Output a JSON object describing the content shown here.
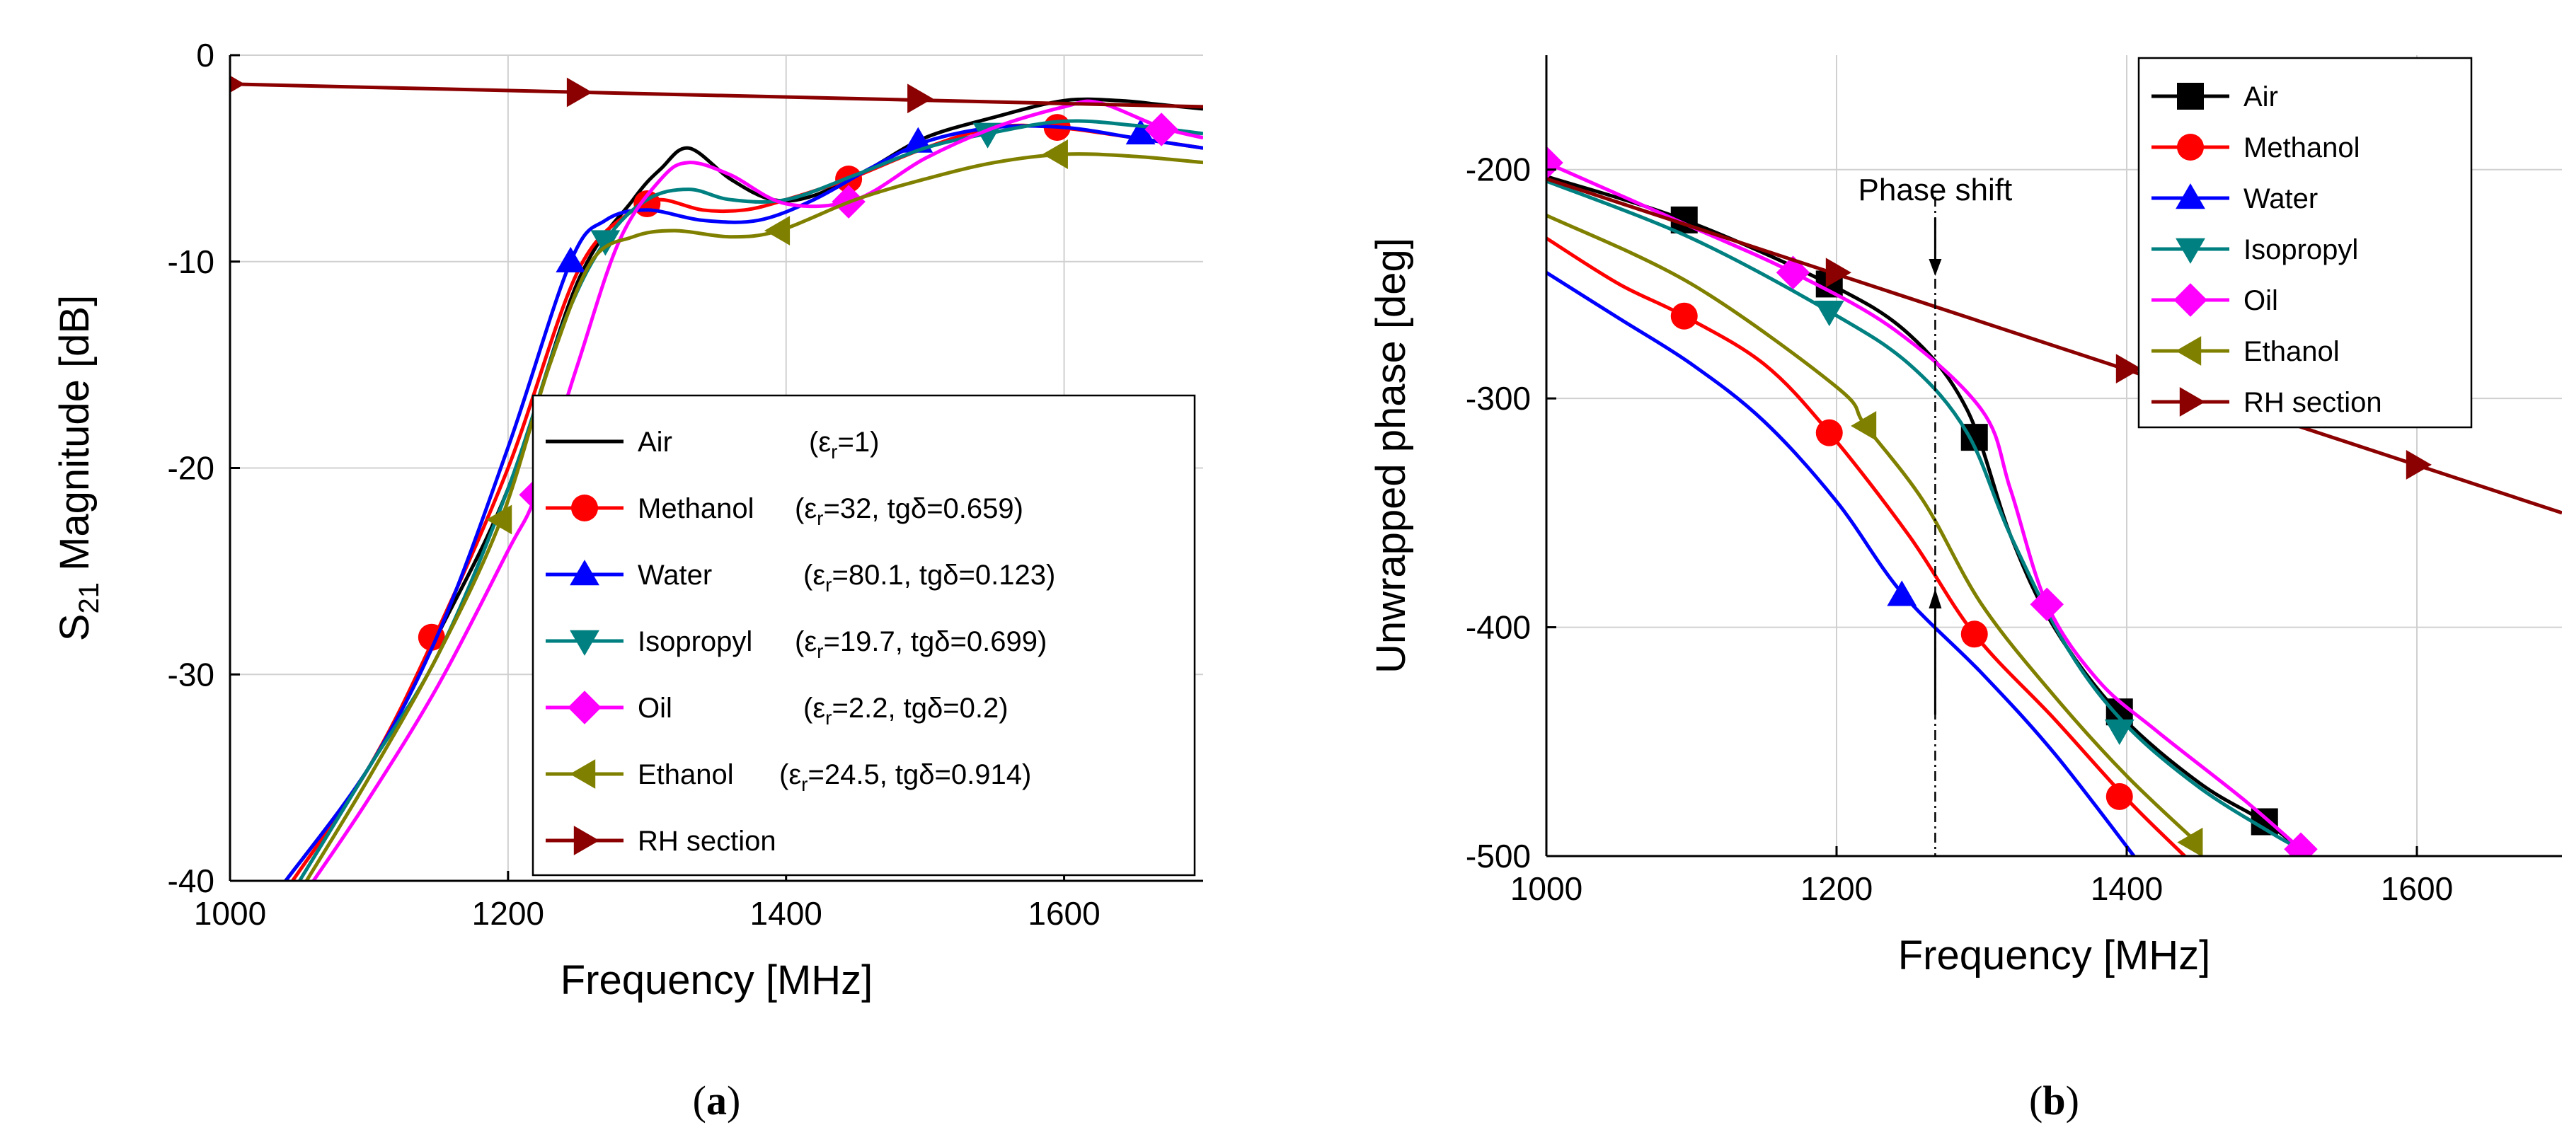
{
  "chart_data": [
    {
      "type": "line",
      "panel": "a",
      "caption_open": "(",
      "caption_letter": "a",
      "caption_close": ")",
      "ylabel_main": "S",
      "ylabel_sub": "21",
      "ylabel_rest": " Magnitude [dB]",
      "xlabel": "Frequency [MHz]",
      "xlim": [
        1000,
        1700
      ],
      "ylim": [
        -40,
        0
      ],
      "xticks": [
        1000,
        1200,
        1400,
        1600
      ],
      "xtick_labels": [
        "1000",
        "1200",
        "1400",
        "1600"
      ],
      "yticks": [
        0,
        -10,
        -20,
        -30,
        -40
      ],
      "ytick_labels": [
        "0",
        "-10",
        "-20",
        "-30",
        "-40"
      ],
      "grid": true,
      "legend_position": "lower-right",
      "series": [
        {
          "name": "Air",
          "legend_name": "Air",
          "legend_props": "(ε",
          "legend_sub": "r",
          "legend_props2": "=1)",
          "color": "#000000",
          "marker": "none",
          "x": [
            1040,
            1100,
            1150,
            1200,
            1250,
            1290,
            1310,
            1330,
            1360,
            1390,
            1420,
            1460,
            1500,
            1550,
            1600,
            1640,
            1670,
            1700
          ],
          "y": [
            -40,
            -34.5,
            -28,
            -21,
            -11,
            -7,
            -5.5,
            -4.5,
            -6,
            -7,
            -6.8,
            -5.5,
            -4,
            -3,
            -2.2,
            -2.2,
            -2.4,
            -2.6
          ]
        },
        {
          "name": "Methanol",
          "legend_name": "Methanol",
          "legend_props": "(ε",
          "legend_sub": "r",
          "legend_props2": "=32, tgδ=0.659)",
          "color": "#ff0000",
          "marker": "circle",
          "x": [
            1045,
            1100,
            1145,
            1200,
            1250,
            1290,
            1310,
            1340,
            1370,
            1400,
            1445,
            1500,
            1550,
            1595,
            1650,
            1700
          ],
          "y": [
            -40,
            -34.5,
            -28.5,
            -20,
            -10.5,
            -7.5,
            -7,
            -7.5,
            -7.5,
            -7,
            -6,
            -4.5,
            -3.5,
            -3.5,
            -4,
            -4.5
          ],
          "marker_x": [
            1145,
            1300,
            1445,
            1595
          ],
          "marker_y": [
            -28.2,
            -7.2,
            -6,
            -3.5
          ]
        },
        {
          "name": "Water",
          "legend_name": "Water",
          "legend_props": "(ε",
          "legend_sub": "r",
          "legend_props2": "=80.1, tgδ=0.123)",
          "color": "#0000ff",
          "marker": "triangle-up",
          "x": [
            1040,
            1100,
            1150,
            1200,
            1245,
            1270,
            1300,
            1340,
            1380,
            1420,
            1460,
            1500,
            1550,
            1600,
            1650,
            1700
          ],
          "y": [
            -40,
            -34.5,
            -28,
            -19,
            -10,
            -8,
            -7.5,
            -8,
            -8,
            -7,
            -5.5,
            -4.2,
            -3.5,
            -3.5,
            -4,
            -4.5
          ],
          "marker_x": [
            1245,
            1495,
            1655
          ],
          "marker_y": [
            -10,
            -4.2,
            -3.8
          ]
        },
        {
          "name": "Isopropyl",
          "legend_name": "Isopropyl",
          "legend_props": "(ε",
          "legend_sub": "r",
          "legend_props2": "=19.7, tgδ=0.699)",
          "color": "#008080",
          "marker": "triangle-down",
          "x": [
            1050,
            1100,
            1150,
            1200,
            1240,
            1270,
            1300,
            1330,
            1360,
            1400,
            1450,
            1500,
            1545,
            1600,
            1650,
            1700
          ],
          "y": [
            -40,
            -34.5,
            -29,
            -21,
            -13,
            -9,
            -7,
            -6.5,
            -7,
            -7,
            -5.8,
            -4.5,
            -3.8,
            -3.2,
            -3.4,
            -3.8
          ],
          "marker_x": [
            1270,
            1545
          ],
          "marker_y": [
            -9,
            -3.8
          ]
        },
        {
          "name": "Oil",
          "legend_name": "Oil",
          "legend_props": "(ε",
          "legend_sub": "r",
          "legend_props2": "=2.2, tgδ=0.2)",
          "color": "#ff00ff",
          "marker": "diamond",
          "x": [
            1060,
            1100,
            1150,
            1200,
            1220,
            1250,
            1280,
            1310,
            1330,
            1360,
            1400,
            1450,
            1500,
            1550,
            1600,
            1625,
            1670,
            1700
          ],
          "y": [
            -40,
            -36,
            -30.5,
            -24,
            -21.3,
            -15,
            -9,
            -6,
            -5.2,
            -5.8,
            -7.2,
            -7,
            -5,
            -3.5,
            -2.5,
            -2.3,
            -3.5,
            -4
          ],
          "marker_x": [
            1220,
            1445,
            1670
          ],
          "marker_y": [
            -21.3,
            -7.1,
            -3.6
          ]
        },
        {
          "name": "Ethanol",
          "legend_name": "Ethanol",
          "legend_props": "(ε",
          "legend_sub": "r",
          "legend_props2": "=24.5, tgδ=0.914)",
          "color": "#808000",
          "marker": "triangle-left",
          "x": [
            1055,
            1100,
            1150,
            1195,
            1230,
            1260,
            1290,
            1320,
            1360,
            1395,
            1450,
            1500,
            1550,
            1600,
            1650,
            1700
          ],
          "y": [
            -40,
            -35,
            -29,
            -22.5,
            -15,
            -10,
            -8.8,
            -8.5,
            -8.8,
            -8.5,
            -7,
            -6,
            -5.2,
            -4.8,
            -4.9,
            -5.2
          ],
          "marker_x": [
            1195,
            1395,
            1595
          ],
          "marker_y": [
            -22.5,
            -8.5,
            -4.8
          ]
        },
        {
          "name": "RH section",
          "legend_name": "RH section",
          "legend_props": "",
          "legend_sub": "",
          "legend_props2": "",
          "color": "#8b0000",
          "marker": "triangle-right",
          "x": [
            1000,
            1700
          ],
          "y": [
            -1.4,
            -2.5
          ],
          "marker_x": [
            1000,
            1250,
            1495
          ],
          "marker_y": [
            -1.4,
            -1.8,
            -2.1
          ]
        }
      ]
    },
    {
      "type": "line",
      "panel": "b",
      "caption_open": "(",
      "caption_letter": "b",
      "caption_close": ")",
      "ylabel": "Unwrapped phase [deg]",
      "xlabel": "Frequency [MHz]",
      "xlim": [
        1000,
        1700
      ],
      "ylim": [
        -500,
        -150
      ],
      "xticks": [
        1000,
        1200,
        1400,
        1600
      ],
      "xtick_labels": [
        "1000",
        "1200",
        "1400",
        "1600"
      ],
      "yticks": [
        -200,
        -300,
        -400,
        -500
      ],
      "ytick_labels": [
        "-200",
        "-300",
        "-400",
        "-500"
      ],
      "grid": true,
      "legend_position": "top-right",
      "annotation": {
        "text": "Phase shift",
        "x": 1268
      },
      "series": [
        {
          "name": "Air",
          "color": "#000000",
          "marker": "square",
          "x": [
            1000,
            1095,
            1195,
            1250,
            1290,
            1320,
            1350,
            1395,
            1450,
            1495,
            1520
          ],
          "y": [
            -203,
            -222,
            -250,
            -272,
            -305,
            -360,
            -400,
            -438,
            -468,
            -485,
            -497
          ],
          "marker_x": [
            1095,
            1195,
            1295,
            1395,
            1495
          ],
          "marker_y": [
            -222,
            -250,
            -317,
            -437,
            -485
          ]
        },
        {
          "name": "Methanol",
          "color": "#ff0000",
          "marker": "circle",
          "x": [
            1000,
            1050,
            1095,
            1150,
            1195,
            1250,
            1295,
            1350,
            1400,
            1440
          ],
          "y": [
            -230,
            -250,
            -264,
            -285,
            -315,
            -360,
            -403,
            -440,
            -475,
            -500
          ],
          "marker_x": [
            1095,
            1195,
            1295,
            1395
          ],
          "marker_y": [
            -264,
            -315,
            -403,
            -474
          ]
        },
        {
          "name": "Water",
          "color": "#0000ff",
          "marker": "triangle-up",
          "x": [
            1000,
            1050,
            1100,
            1150,
            1200,
            1245,
            1300,
            1350,
            1405
          ],
          "y": [
            -245,
            -265,
            -285,
            -310,
            -345,
            -385,
            -420,
            -455,
            -500
          ],
          "marker_x": [
            1245
          ],
          "marker_y": [
            -386
          ]
        },
        {
          "name": "Isopropyl",
          "color": "#008080",
          "marker": "triangle-down",
          "x": [
            1000,
            1100,
            1195,
            1250,
            1290,
            1320,
            1360,
            1400,
            1450,
            1500,
            1520
          ],
          "y": [
            -205,
            -230,
            -262,
            -285,
            -315,
            -360,
            -410,
            -443,
            -470,
            -490,
            -497
          ],
          "marker_x": [
            1195,
            1395
          ],
          "marker_y": [
            -262,
            -445
          ]
        },
        {
          "name": "Oil",
          "color": "#ff00ff",
          "marker": "diamond",
          "x": [
            1000,
            1100,
            1170,
            1240,
            1300,
            1320,
            1345,
            1380,
            1420,
            1480,
            1520
          ],
          "y": [
            -197,
            -225,
            -245,
            -270,
            -305,
            -340,
            -390,
            -423,
            -445,
            -475,
            -497
          ],
          "marker_x": [
            1000,
            1170,
            1345,
            1520
          ],
          "marker_y": [
            -197,
            -245,
            -390,
            -497
          ]
        },
        {
          "name": "Ethanol",
          "color": "#808000",
          "marker": "triangle-left",
          "x": [
            1000,
            1100,
            1200,
            1220,
            1260,
            1300,
            1350,
            1400,
            1450
          ],
          "y": [
            -220,
            -250,
            -295,
            -312,
            -345,
            -390,
            -430,
            -465,
            -495
          ],
          "marker_x": [
            1220,
            1445
          ],
          "marker_y": [
            -312,
            -494
          ]
        },
        {
          "name": "RH section",
          "color": "#8b0000",
          "marker": "triangle-right",
          "x": [
            1000,
            1700
          ],
          "y": [
            -204,
            -350
          ],
          "marker_x": [
            1200,
            1400,
            1600
          ],
          "marker_y": [
            -245,
            -287,
            -329
          ]
        }
      ]
    }
  ]
}
